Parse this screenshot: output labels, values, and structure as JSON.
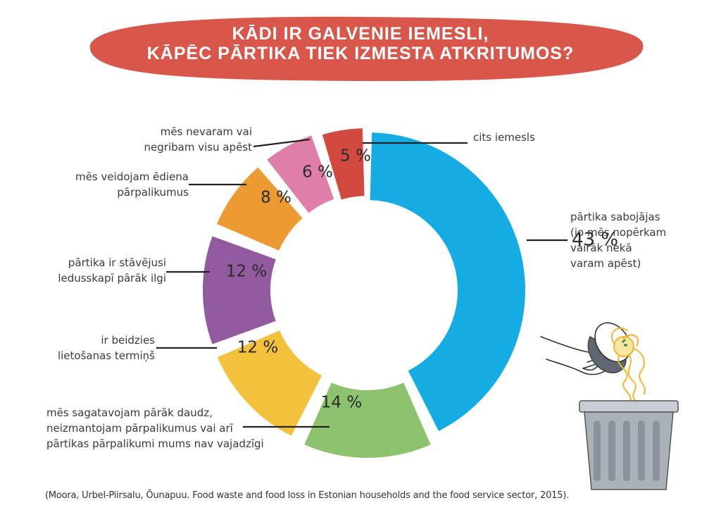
{
  "title": {
    "line1": "KĀDI IR GALVENIE IEMESLI,",
    "line2": "KĀPĒC PĀRTIKA TIEK IZMESTA ATKRITUMOS?"
  },
  "colors": {
    "banner": "#d9564b",
    "label_text": "#3a3a3a",
    "leader_line": "#222222"
  },
  "chart_data": {
    "type": "pie",
    "variant": "donut",
    "slices": [
      {
        "key": "spoils",
        "value": 43,
        "display": "43 %",
        "color": "#14ace3",
        "label": [
          "pārtika sabojājas",
          "(jo mēs nopērkam",
          "vairāk nekā",
          "varam apēst)"
        ]
      },
      {
        "key": "too-much",
        "value": 14,
        "display": "14 %",
        "color": "#8dc26f",
        "label": [
          "mēs sagatavojam pārāk daudz,",
          "neizmantojam pārpalikumus vai arī",
          "pārtikas pārpalikumi mums nav vajadzīgi"
        ]
      },
      {
        "key": "expired",
        "value": 12,
        "display": "12 %",
        "color": "#f4c13d",
        "label": [
          "ir beidzies",
          "lietošanas termiņš"
        ]
      },
      {
        "key": "fridge",
        "value": 12,
        "display": "12 %",
        "color": "#935b9f",
        "label": [
          "pārtika ir stāvējusi",
          "ledusskapī pārāk ilgi"
        ]
      },
      {
        "key": "leftovers",
        "value": 8,
        "display": "8 %",
        "color": "#ec9b33",
        "label": [
          "mēs veidojam ēdiena",
          "pārpalikumus"
        ]
      },
      {
        "key": "cannot-eat",
        "value": 6,
        "display": "6 %",
        "color": "#df7fa8",
        "label": [
          "mēs nevaram vai",
          "negribam visu apēst"
        ]
      },
      {
        "key": "other",
        "value": 5,
        "display": "5 %",
        "color": "#d24a3f",
        "label": [
          "cits iemesls"
        ]
      }
    ]
  },
  "source": "(Moora, Urbel-Piirsalu, Õunapuu. Food waste and food loss in Estonian households and the food service sector, 2015).",
  "illustration": {
    "description_icons": [
      "hand-icon",
      "bowl-icon",
      "spaghetti-icon",
      "trash-can-icon"
    ]
  }
}
